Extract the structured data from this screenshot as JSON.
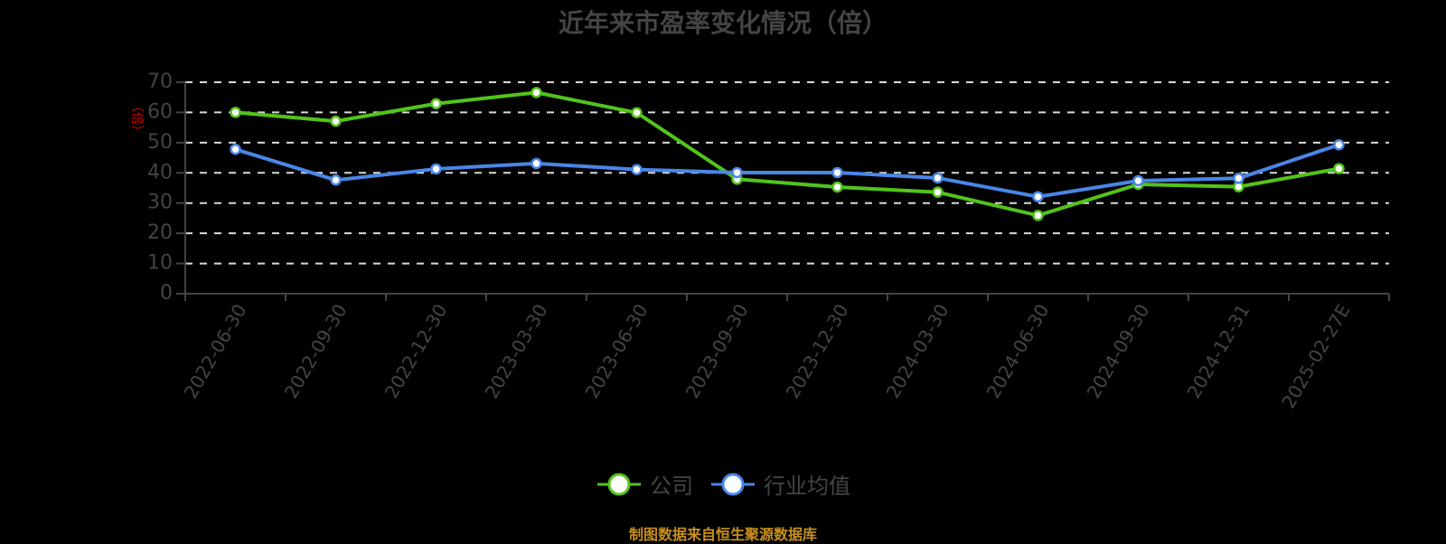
{
  "title": "近年来市盈率变化情况（倍）",
  "footer": "制图数据来自恒生聚源数据库",
  "legend": [
    {
      "label": "公司",
      "color": "#52c41a"
    },
    {
      "label": "行业均值",
      "color": "#4a86e8"
    }
  ],
  "chart_data": {
    "type": "line",
    "title": "近年来市盈率变化情况（倍）",
    "xlabel": "",
    "ylabel": "（倍）",
    "ylim": [
      0,
      70
    ],
    "yticks": [
      0,
      10,
      20,
      30,
      40,
      50,
      60,
      70
    ],
    "grid": true,
    "legend_position": "bottom",
    "categories": [
      "2022-06-30",
      "2022-09-30",
      "2022-12-30",
      "2023-03-30",
      "2023-06-30",
      "2023-09-30",
      "2023-12-30",
      "2024-03-30",
      "2024-06-30",
      "2024-09-30",
      "2024-12-31",
      "2025-02-27E"
    ],
    "series": [
      {
        "name": "公司",
        "color": "#52c41a",
        "values": [
          60.0,
          57.1,
          62.9,
          66.6,
          59.9,
          37.9,
          35.3,
          33.6,
          25.9,
          36.2,
          35.4,
          41.4
        ]
      },
      {
        "name": "行业均值",
        "color": "#4a86e8",
        "values": [
          47.8,
          37.6,
          41.3,
          43.1,
          41.1,
          40.1,
          40.1,
          38.3,
          32.1,
          37.4,
          38.2,
          49.3
        ]
      }
    ]
  }
}
